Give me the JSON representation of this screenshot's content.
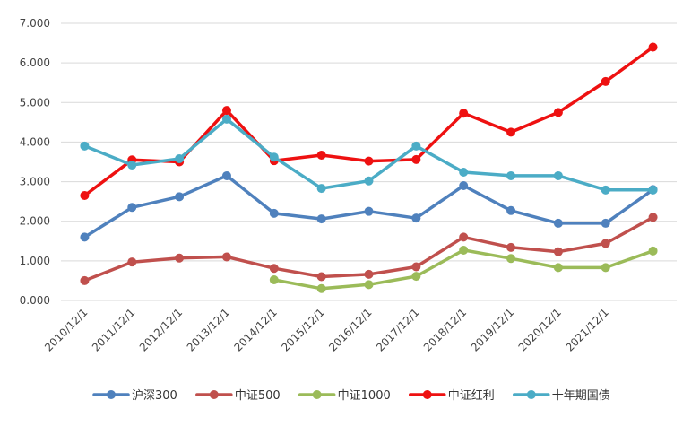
{
  "chart_data": {
    "type": "line",
    "title": "",
    "xlabel": "",
    "ylabel": "",
    "ylim": [
      0,
      7
    ],
    "yticks": [
      "0.000",
      "1.000",
      "2.000",
      "3.000",
      "4.000",
      "5.000",
      "6.000",
      "7.000"
    ],
    "categories": [
      "2010/12/1",
      "2011/12/1",
      "2012/12/1",
      "2013/12/1",
      "2014/12/1",
      "2015/12/1",
      "2016/12/1",
      "2017/12/1",
      "2018/12/1",
      "2019/12/1",
      "2020/12/1",
      "2021/12/1",
      ""
    ],
    "grid": true,
    "legend": "bottom",
    "series": [
      {
        "name": "沪深300",
        "color": "#4f81bd",
        "values": [
          1.6,
          2.35,
          2.62,
          3.15,
          2.2,
          2.06,
          2.25,
          2.08,
          2.9,
          2.27,
          1.95,
          1.95,
          2.8
        ]
      },
      {
        "name": "中证500",
        "color": "#c0504d",
        "values": [
          0.5,
          0.97,
          1.07,
          1.1,
          0.81,
          0.6,
          0.66,
          0.85,
          1.6,
          1.34,
          1.23,
          1.44,
          2.1
        ]
      },
      {
        "name": "中证1000",
        "color": "#9bbb59",
        "values": [
          null,
          null,
          null,
          null,
          0.52,
          0.3,
          0.4,
          0.61,
          1.27,
          1.06,
          0.83,
          0.83,
          1.25
        ]
      },
      {
        "name": "中证红利",
        "color": "#ee1111",
        "values": [
          2.65,
          3.55,
          3.5,
          4.8,
          3.53,
          3.67,
          3.52,
          3.56,
          4.73,
          4.25,
          4.75,
          5.53,
          6.4
        ]
      },
      {
        "name": "十年期国债",
        "color": "#4bacc6",
        "values": [
          3.9,
          3.42,
          3.58,
          4.58,
          3.62,
          2.83,
          3.02,
          3.9,
          3.24,
          3.15,
          3.15,
          2.79,
          2.79
        ]
      }
    ]
  }
}
